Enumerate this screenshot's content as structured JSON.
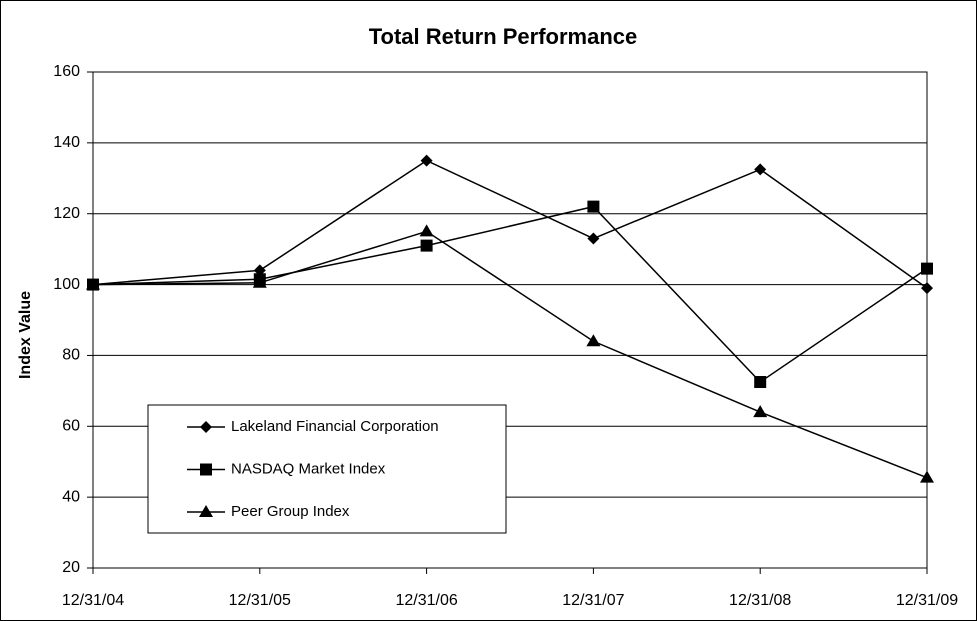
{
  "chart_data": {
    "type": "line",
    "title": "Total Return Performance",
    "y_label": "Index Value",
    "categories": [
      "12/31/04",
      "12/31/05",
      "12/31/06",
      "12/31/07",
      "12/31/08",
      "12/31/09"
    ],
    "series": [
      {
        "name": "Lakeland Financial Corporation",
        "color": "#000000",
        "marker": "diamond",
        "values": [
          100,
          104,
          135,
          113,
          132.5,
          99
        ]
      },
      {
        "name": "NASDAQ Market Index",
        "color": "#000000",
        "marker": "square",
        "values": [
          100,
          101.5,
          111,
          122,
          72.5,
          104.5
        ]
      },
      {
        "name": "Peer Group Index",
        "color": "#000000",
        "marker": "triangle",
        "values": [
          100,
          100.5,
          115,
          84,
          64,
          45.5
        ]
      }
    ],
    "ylim": [
      20,
      160
    ],
    "yticks": [
      20,
      40,
      60,
      80,
      100,
      120,
      140,
      160
    ],
    "grid": true,
    "legend": "lower-left"
  }
}
